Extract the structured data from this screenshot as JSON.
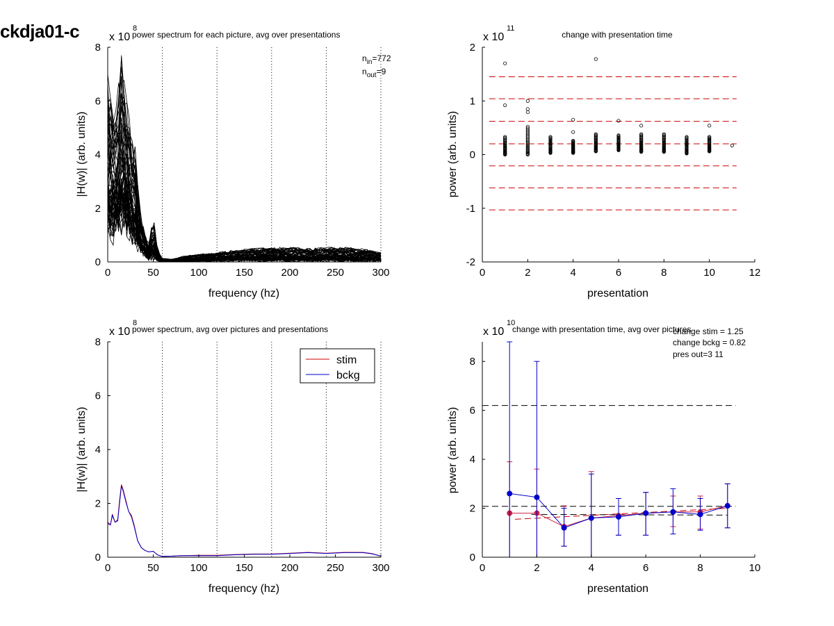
{
  "figure": {
    "title": "ckdja01-c"
  },
  "chart_data": [
    {
      "id": "tl",
      "type": "line",
      "title": "power spectrum for each picture, avg over presentations",
      "xlabel": "frequency (hz)",
      "ylabel": "|H(w)| (arb. units)",
      "xlim": [
        0,
        300
      ],
      "ylim": [
        0,
        8
      ],
      "xticks": [
        0,
        50,
        100,
        150,
        200,
        250,
        300
      ],
      "yticks": [
        0,
        2,
        4,
        6,
        8
      ],
      "y_multiplier": "x 10",
      "y_exponent": "8",
      "vlines": [
        60,
        120,
        180,
        240,
        300
      ],
      "notes": {
        "n_in_label": "n",
        "n_in_sub": "in",
        "n_in_value": "=772",
        "n_out_label": "n",
        "n_out_sub": "out",
        "n_out_value": "=9"
      },
      "envelope": {
        "x": [
          0,
          5,
          10,
          15,
          20,
          25,
          30,
          35,
          40,
          45,
          50,
          55,
          60,
          70,
          80,
          100,
          120,
          140,
          160,
          180,
          200,
          220,
          240,
          260,
          280,
          300
        ],
        "lo": [
          0.8,
          0.6,
          0.7,
          0.9,
          0.8,
          0.6,
          0.4,
          0.25,
          0.15,
          0.05,
          0.02,
          0.01,
          0.0,
          0.0,
          0.0,
          0.0,
          0.0,
          0.0,
          0.0,
          0.0,
          0.0,
          0.0,
          0.0,
          0.0,
          0.0,
          0.0
        ],
        "hi": [
          7.0,
          5.5,
          6.0,
          7.7,
          6.5,
          5.0,
          4.3,
          2.0,
          1.2,
          0.7,
          1.8,
          0.4,
          0.15,
          0.1,
          0.2,
          0.3,
          0.35,
          0.45,
          0.5,
          0.55,
          0.55,
          0.5,
          0.55,
          0.55,
          0.5,
          0.35
        ]
      },
      "line_count_drawn": 60
    },
    {
      "id": "tr",
      "type": "scatter",
      "title": "change with presentation time",
      "xlabel": "presentation",
      "ylabel": "power (arb. units)",
      "xlim": [
        0,
        12
      ],
      "ylim": [
        -2,
        2
      ],
      "xticks": [
        0,
        2,
        4,
        6,
        8,
        10,
        12
      ],
      "yticks": [
        -2,
        -1,
        0,
        1,
        2
      ],
      "y_multiplier": "x 10",
      "y_exponent": "11",
      "hlines": [
        1.45,
        1.04,
        0.62,
        0.2,
        -0.21,
        -0.62,
        -1.03
      ],
      "columns": [
        {
          "x": 1,
          "min": 0.0,
          "max": 0.33
        },
        {
          "x": 2,
          "min": 0.0,
          "max": 0.52
        },
        {
          "x": 3,
          "min": 0.03,
          "max": 0.33
        },
        {
          "x": 4,
          "min": 0.03,
          "max": 0.26
        },
        {
          "x": 5,
          "min": 0.06,
          "max": 0.38
        },
        {
          "x": 6,
          "min": 0.08,
          "max": 0.36
        },
        {
          "x": 7,
          "min": 0.05,
          "max": 0.38
        },
        {
          "x": 8,
          "min": 0.05,
          "max": 0.38
        },
        {
          "x": 9,
          "min": 0.02,
          "max": 0.33
        },
        {
          "x": 10,
          "min": 0.06,
          "max": 0.33
        }
      ],
      "outliers": [
        {
          "x": 1,
          "y": 1.7
        },
        {
          "x": 1,
          "y": 0.92
        },
        {
          "x": 2,
          "y": 1.0
        },
        {
          "x": 2,
          "y": 0.85
        },
        {
          "x": 2,
          "y": 0.79
        },
        {
          "x": 4,
          "y": 0.65
        },
        {
          "x": 4,
          "y": 0.42
        },
        {
          "x": 5,
          "y": 1.78
        },
        {
          "x": 6,
          "y": 0.63
        },
        {
          "x": 7,
          "y": 0.54
        },
        {
          "x": 10,
          "y": 0.54
        },
        {
          "x": 11,
          "y": 0.17
        }
      ]
    },
    {
      "id": "bl",
      "type": "line",
      "title": "power spectrum, avg over pictures and presentations",
      "xlabel": "frequency (hz)",
      "ylabel": "|H(w)| (arb. units)",
      "xlim": [
        0,
        300
      ],
      "ylim": [
        0,
        8
      ],
      "xticks": [
        0,
        50,
        100,
        150,
        200,
        250,
        300
      ],
      "yticks": [
        0,
        2,
        4,
        6,
        8
      ],
      "y_multiplier": "x 10",
      "y_exponent": "8",
      "vlines": [
        60,
        120,
        180,
        240,
        300
      ],
      "legend_position": "top-right",
      "series": [
        {
          "name": "stim",
          "color": "#cc0000",
          "x": [
            0,
            3,
            5,
            8,
            11,
            13,
            15,
            17,
            20,
            23,
            26,
            29,
            33,
            37,
            41,
            45,
            50,
            55,
            60,
            70,
            80,
            100,
            120,
            140,
            160,
            180,
            200,
            220,
            240,
            260,
            280,
            290,
            300
          ],
          "y": [
            1.3,
            1.2,
            1.6,
            1.3,
            1.4,
            2.1,
            2.7,
            2.5,
            2.1,
            1.7,
            1.55,
            1.2,
            0.6,
            0.35,
            0.25,
            0.2,
            0.22,
            0.08,
            0.03,
            0.04,
            0.06,
            0.07,
            0.07,
            0.1,
            0.12,
            0.12,
            0.15,
            0.18,
            0.15,
            0.18,
            0.18,
            0.14,
            0.04
          ]
        },
        {
          "name": "bckg",
          "color": "#0000cc",
          "x": [
            0,
            3,
            5,
            8,
            11,
            13,
            15,
            17,
            20,
            23,
            26,
            29,
            33,
            37,
            41,
            45,
            50,
            55,
            60,
            70,
            80,
            100,
            120,
            140,
            160,
            180,
            200,
            220,
            240,
            260,
            280,
            290,
            300
          ],
          "y": [
            1.25,
            1.2,
            1.55,
            1.3,
            1.35,
            2.0,
            2.65,
            2.45,
            2.05,
            1.7,
            1.5,
            1.15,
            0.6,
            0.35,
            0.25,
            0.2,
            0.22,
            0.08,
            0.03,
            0.04,
            0.06,
            0.06,
            0.06,
            0.09,
            0.11,
            0.11,
            0.14,
            0.17,
            0.14,
            0.17,
            0.17,
            0.13,
            0.04
          ]
        }
      ]
    },
    {
      "id": "br",
      "type": "line",
      "title": "change with presentation time, avg over pictures",
      "xlabel": "presentation",
      "ylabel": "power (arb. units)",
      "xlim": [
        0,
        10
      ],
      "ylim": [
        0,
        8.8
      ],
      "xticks": [
        0,
        2,
        4,
        6,
        8,
        10
      ],
      "yticks": [
        0,
        2,
        4,
        6,
        8
      ],
      "y_multiplier": "x 10",
      "y_exponent": "10",
      "notes": [
        "change stim = 1.25",
        "change bckg = 0.82",
        "pres out=3 11"
      ],
      "hlines": [
        {
          "y": 6.2,
          "x0": 0,
          "x1": 9.3,
          "color": "#000000"
        },
        {
          "y": 2.08,
          "x0": 0,
          "x1": 9.3,
          "color": "#000000"
        }
      ],
      "trend_lines": [
        {
          "x0": 1.2,
          "y0": 1.55,
          "x1": 9.0,
          "y1": 2.0,
          "color": "#cc0000"
        },
        {
          "x0": 1.8,
          "y0": 1.75,
          "x1": 9.0,
          "y1": 1.72,
          "color": "#000000"
        }
      ],
      "series": [
        {
          "name": "stim",
          "color": "#cc2244",
          "x": [
            1,
            2,
            3,
            4,
            5,
            6,
            7,
            8,
            9
          ],
          "y": [
            1.8,
            1.8,
            1.25,
            1.6,
            1.7,
            1.8,
            1.85,
            1.85,
            2.1
          ],
          "err_lo": [
            0,
            0,
            0.45,
            0,
            0.9,
            0.9,
            1.25,
            1.15,
            1.2
          ],
          "err_hi": [
            3.9,
            3.6,
            2.1,
            3.5,
            2.4,
            2.65,
            2.5,
            2.5,
            3.0
          ]
        },
        {
          "name": "bckg",
          "color": "#0000cc",
          "x": [
            1,
            2,
            3,
            4,
            5,
            6,
            7,
            8,
            9
          ],
          "y": [
            2.6,
            2.45,
            1.2,
            1.6,
            1.65,
            1.8,
            1.85,
            1.75,
            2.1
          ],
          "err_lo": [
            0,
            0,
            0.45,
            0,
            0.9,
            0.9,
            0.95,
            1.1,
            1.2
          ],
          "err_hi": [
            8.8,
            8.0,
            2.0,
            3.4,
            2.4,
            2.65,
            2.8,
            2.4,
            3.0
          ]
        }
      ]
    }
  ]
}
